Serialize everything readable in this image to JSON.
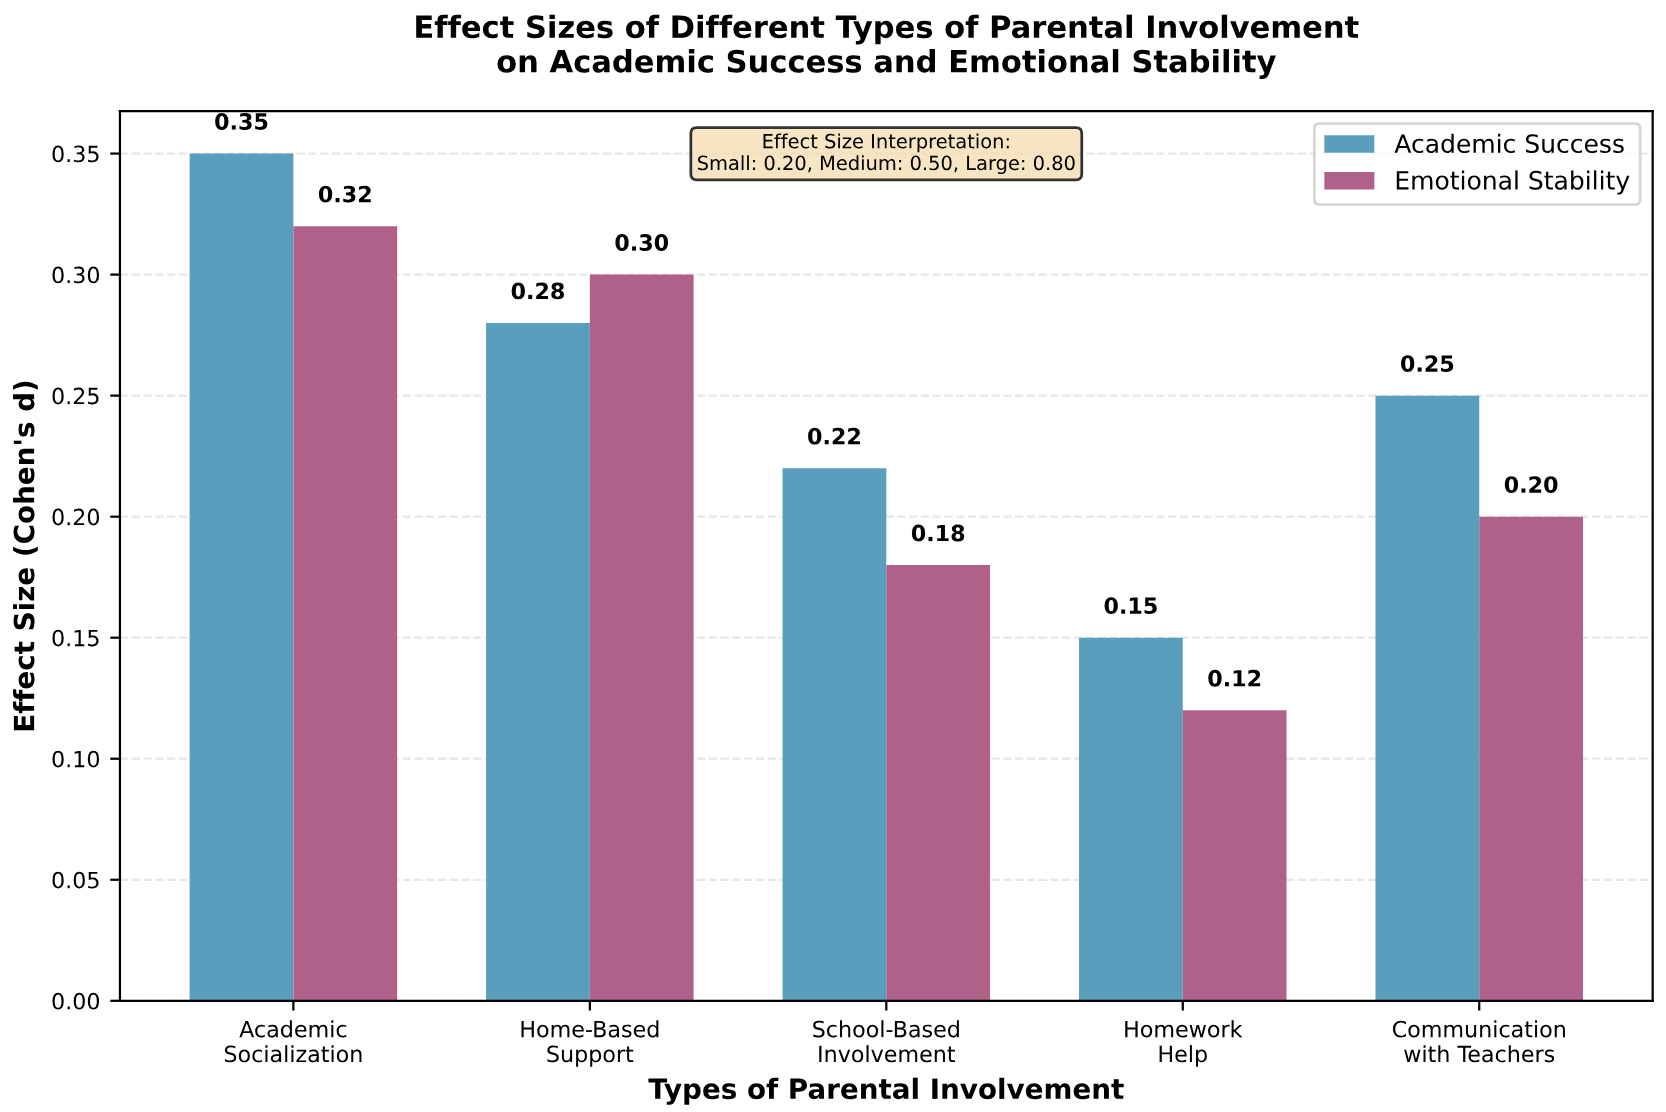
{
  "chart_data": {
    "type": "bar",
    "title": "Effect Sizes of Different Types of Parental Involvement\non Academic Success and Emotional Stability",
    "xlabel": "Types of Parental Involvement",
    "ylabel": "Effect Size (Cohen's d)",
    "categories": [
      "Academic\nSocialization",
      "Home-Based\nSupport",
      "School-Based\nInvolvement",
      "Homework\nHelp",
      "Communication\nwith Teachers"
    ],
    "series": [
      {
        "name": "Academic Success",
        "color": "#5a9ebd",
        "values": [
          0.35,
          0.28,
          0.22,
          0.15,
          0.25
        ],
        "value_labels": [
          "0.35",
          "0.28",
          "0.22",
          "0.15",
          "0.25"
        ]
      },
      {
        "name": "Emotional Stability",
        "color": "#b06189",
        "values": [
          0.32,
          0.3,
          0.18,
          0.12,
          0.2
        ],
        "value_labels": [
          "0.32",
          "0.30",
          "0.18",
          "0.12",
          "0.20"
        ]
      }
    ],
    "ylim": [
      0,
      0.3675
    ],
    "yticks": [
      {
        "value": 0,
        "label": "0.00"
      },
      0.05,
      {
        "value": 0.1,
        "label": "0.10"
      },
      0.15,
      {
        "value": 0.2,
        "label": "0.20"
      },
      0.25,
      {
        "value": 0.3,
        "label": "0.30"
      },
      0.35
    ],
    "grid": "y",
    "legend": "top right",
    "annotations": [
      "Effect Size Interpretation:\nSmall: 0.20, Medium: 0.50, Large: 0.80"
    ]
  }
}
